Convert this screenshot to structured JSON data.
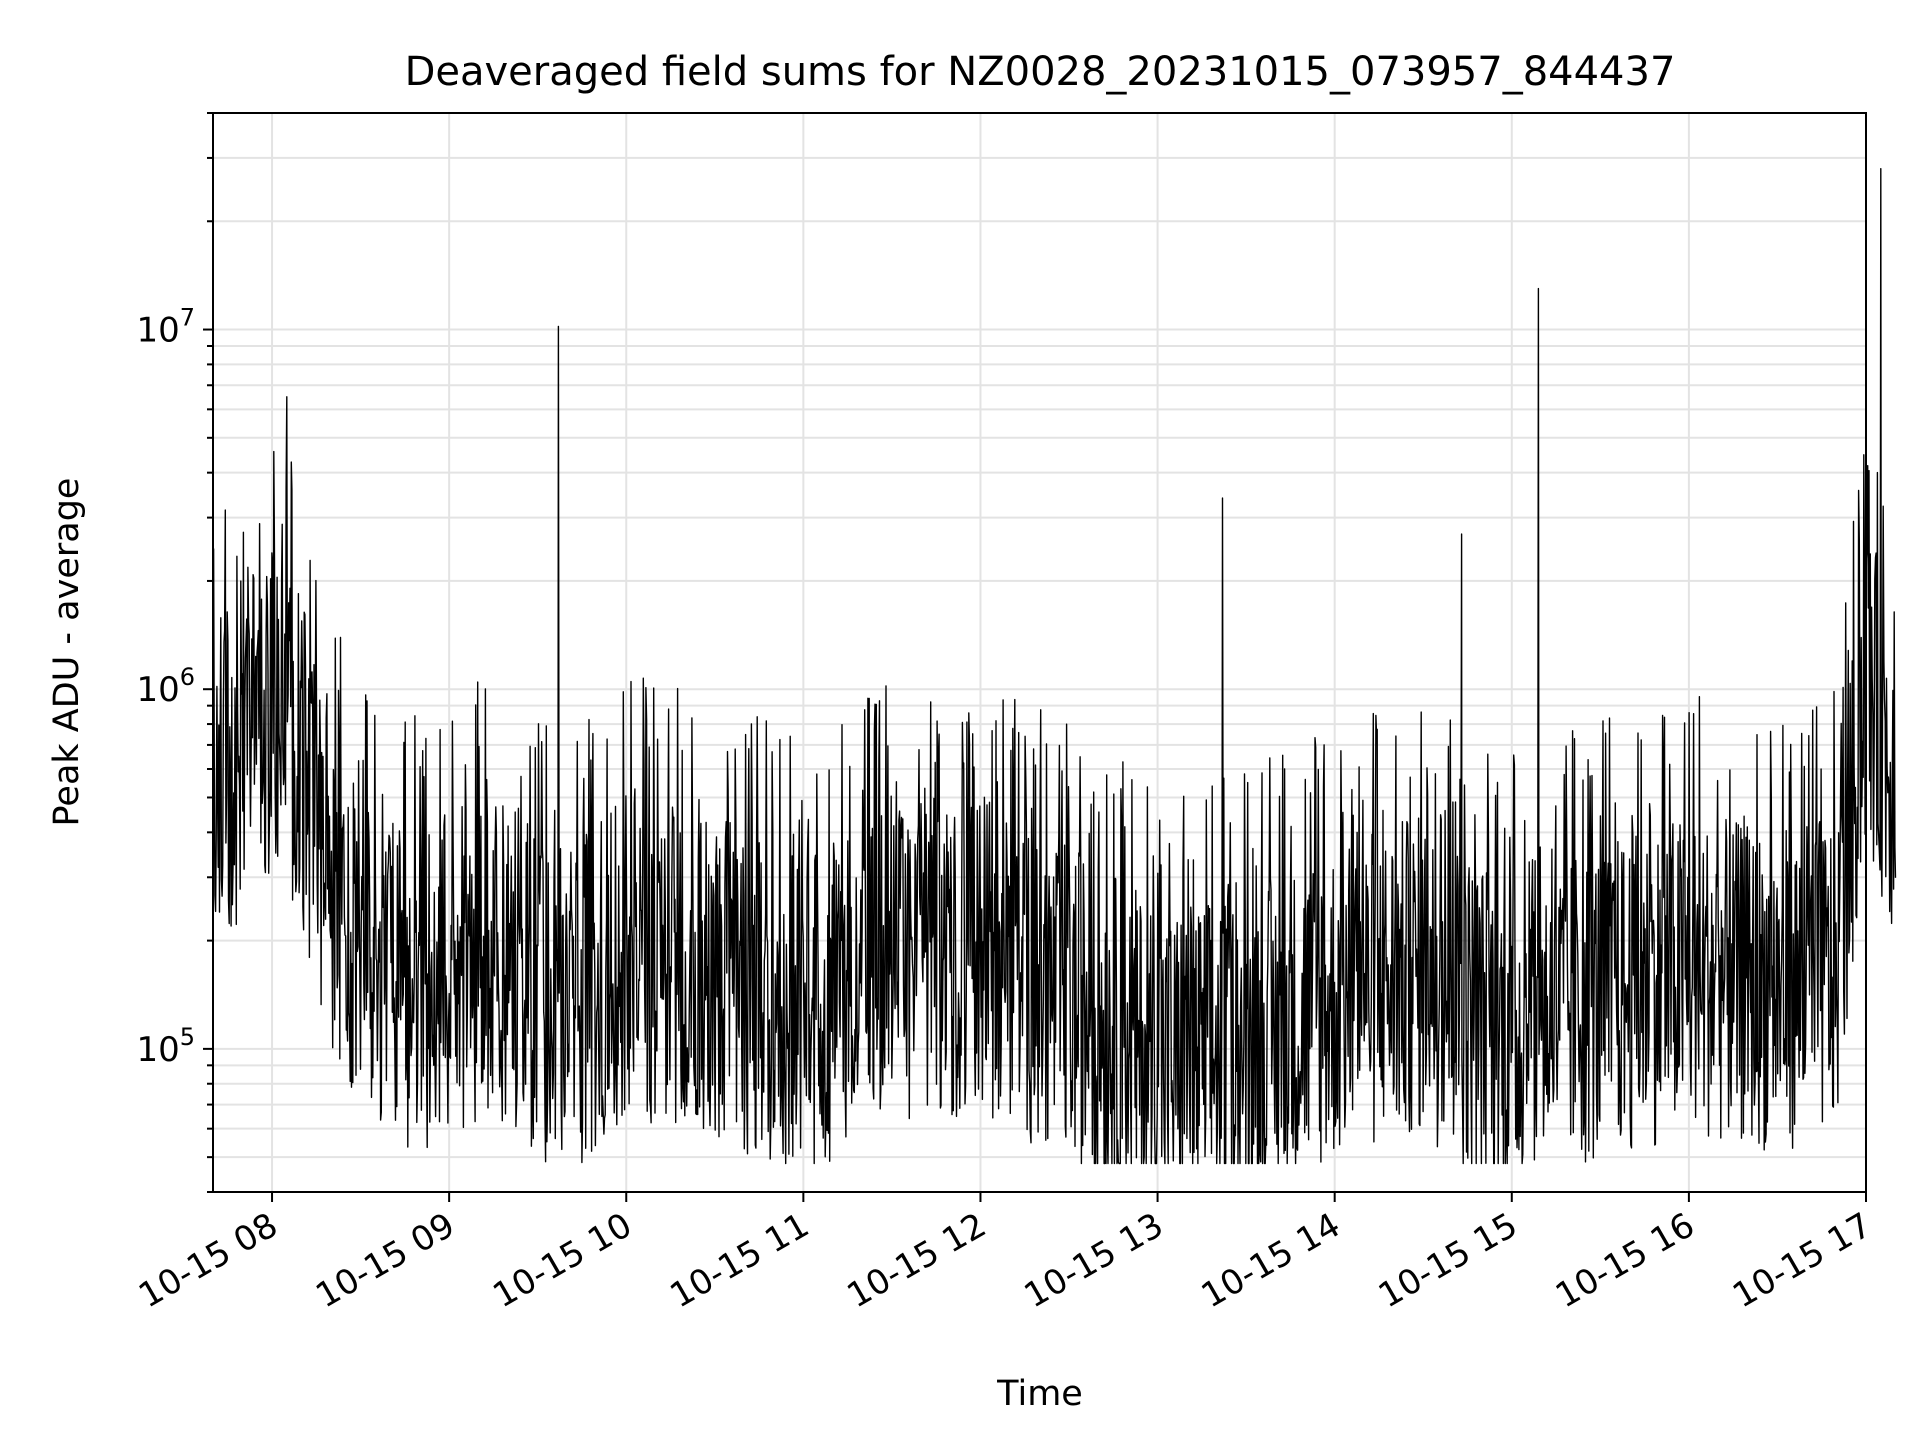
{
  "chart_data": {
    "type": "line",
    "title": "Deaveraged field sums for NZ0028_20231015_073957_844437",
    "xlabel": "Time",
    "ylabel": "Peak ADU - average",
    "y_scale": "log",
    "ylim": [
      40000,
      40000000
    ],
    "xlim": [
      "2023-10-15 07:40",
      "2023-10-15 17:00"
    ],
    "x_tick_labels": [
      "10-15 08",
      "10-15 09",
      "10-15 10",
      "10-15 11",
      "10-15 12",
      "10-15 13",
      "10-15 14",
      "10-15 15",
      "10-15 16",
      "10-15 17"
    ],
    "y_tick_labels": [
      {
        "base": "10",
        "exp": "5",
        "value": 100000
      },
      {
        "base": "10",
        "exp": "6",
        "value": 1000000
      },
      {
        "base": "10",
        "exp": "7",
        "value": 10000000
      }
    ],
    "grid": true,
    "line_color": "#000000",
    "series": [
      {
        "x": [
          "2023-10-15 07:40",
          "2023-10-15 07:50",
          "2023-10-15 08:00",
          "2023-10-15 08:05",
          "2023-10-15 08:10",
          "2023-10-15 08:20",
          "2023-10-15 08:30",
          "2023-10-15 08:45",
          "2023-10-15 09:00",
          "2023-10-15 09:15",
          "2023-10-15 09:30",
          "2023-10-15 09:37",
          "2023-10-15 09:45",
          "2023-10-15 10:00",
          "2023-10-15 10:30",
          "2023-10-15 11:00",
          "2023-10-15 11:30",
          "2023-10-15 12:00",
          "2023-10-15 12:30",
          "2023-10-15 13:00",
          "2023-10-15 13:22",
          "2023-10-15 13:30",
          "2023-10-15 14:00",
          "2023-10-15 14:30",
          "2023-10-15 14:43",
          "2023-10-15 15:00",
          "2023-10-15 15:09",
          "2023-10-15 15:30",
          "2023-10-15 16:00",
          "2023-10-15 16:30",
          "2023-10-15 16:50",
          "2023-10-15 17:00",
          "2023-10-15 17:05",
          "2023-10-15 17:10"
        ],
        "y": [
          600000,
          700000,
          1000000,
          6500000,
          700000,
          300000,
          200000,
          150000,
          180000,
          200000,
          150000,
          10200000,
          150000,
          200000,
          180000,
          130000,
          200000,
          200000,
          150000,
          100000,
          3400000,
          110000,
          150000,
          180000,
          2700000,
          120000,
          13000000,
          150000,
          180000,
          160000,
          180000,
          1200000,
          28000000,
          600000
        ]
      }
    ]
  }
}
